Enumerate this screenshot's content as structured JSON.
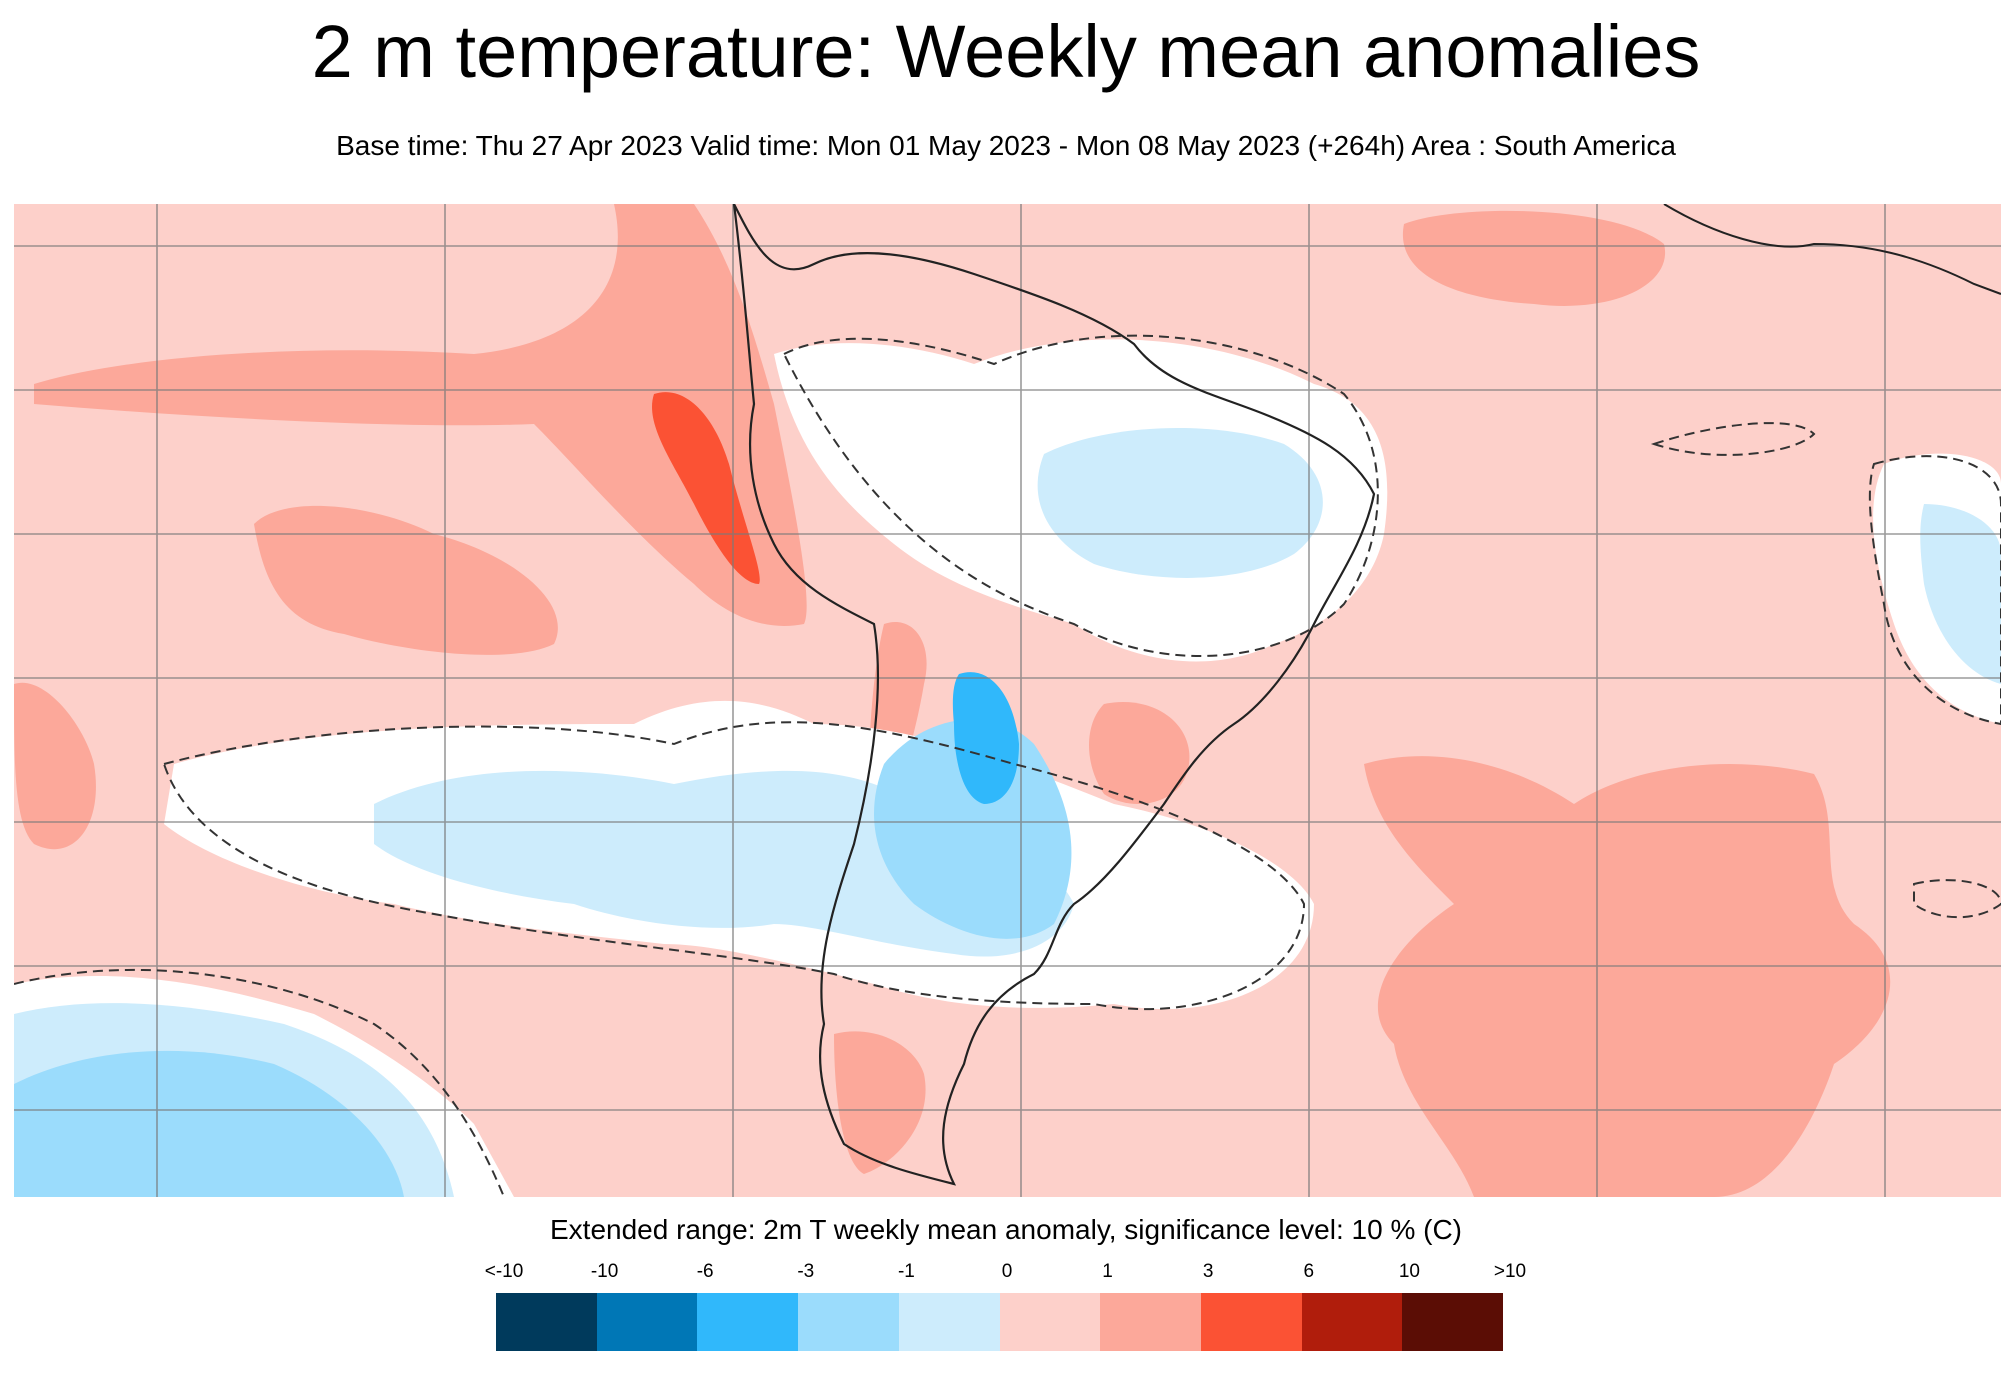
{
  "title": "2 m temperature: Weekly mean anomalies",
  "subtitle": "Base time: Thu 27 Apr 2023 Valid time: Mon 01 May 2023 - Mon 08 May 2023 (+264h) Area : South America",
  "legend": {
    "title": "Extended range: 2m T weekly mean anomaly, significance level: 10 % (C)",
    "labels": [
      "<-10",
      "-10",
      "-6",
      "-3",
      "-1",
      "0",
      "1",
      "3",
      "6",
      "10",
      ">10"
    ],
    "colors": [
      "#003a5c",
      "#0077b6",
      "#30b8fb",
      "#9bdcfc",
      "#cdecfc",
      "#fdd0ca",
      "#fca89a",
      "#fb5234",
      "#b01d0c",
      "#5b0d05"
    ]
  },
  "map_colors": {
    "ocean_default": "#fdd0ca",
    "neutral": "#ffffff",
    "pos_1_3": "#fca89a",
    "pos_3_6": "#fb5234",
    "neg_1_0": "#cdecfc",
    "neg_3_1": "#9bdcfc",
    "neg_6_3": "#30b8fb",
    "grid": "#7a7a7a",
    "coast": "#222222",
    "significance_contour": "#333333"
  }
}
